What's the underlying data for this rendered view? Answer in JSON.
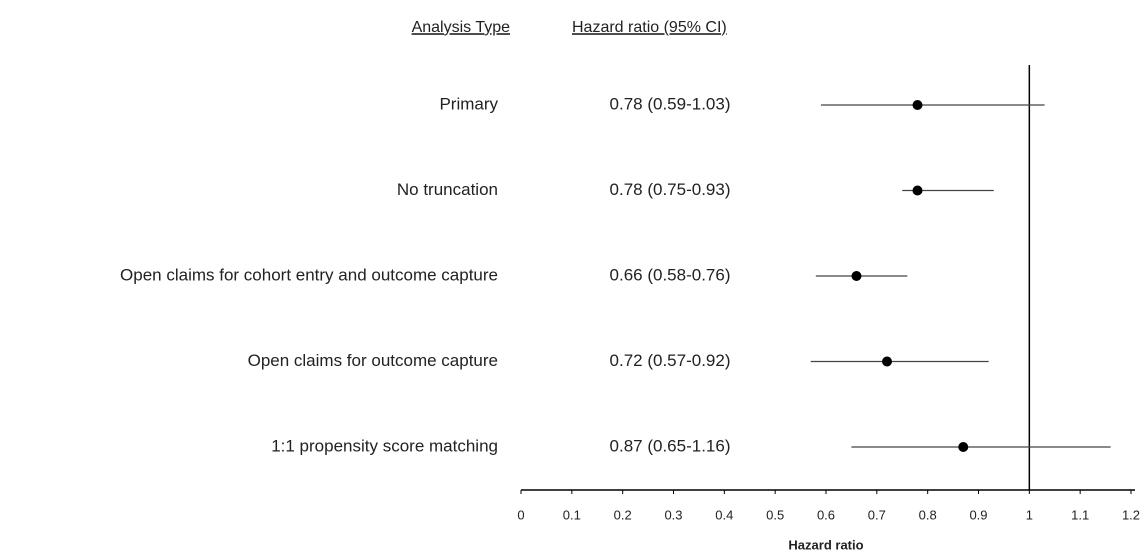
{
  "chart_data": {
    "type": "forest",
    "column_headers": [
      "Analysis Type",
      "Hazard ratio (95% CI)"
    ],
    "x_label": "Hazard ratio",
    "categories": [
      "Primary",
      "No truncation",
      "Open claims for cohort entry and outcome capture",
      "Open claims for outcome capture",
      "1:1 propensity score matching"
    ],
    "values": [
      0.78,
      0.78,
      0.66,
      0.72,
      0.87
    ],
    "lower": [
      0.59,
      0.75,
      0.58,
      0.57,
      0.65
    ],
    "upper": [
      1.03,
      0.93,
      0.76,
      0.92,
      1.16
    ],
    "value_labels": [
      "0.78 (0.59-1.03)",
      "0.78 (0.75-0.93)",
      "0.66 (0.58-0.76)",
      "0.72 (0.57-0.92)",
      "0.87 (0.65-1.16)"
    ],
    "reference_line": 1,
    "xlim": [
      0,
      1.2
    ],
    "xticks": [
      0,
      0.1,
      0.2,
      0.3,
      0.4,
      0.5,
      0.6,
      0.7,
      0.8,
      0.9,
      1,
      1.1,
      1.2
    ],
    "color": "#000000"
  }
}
